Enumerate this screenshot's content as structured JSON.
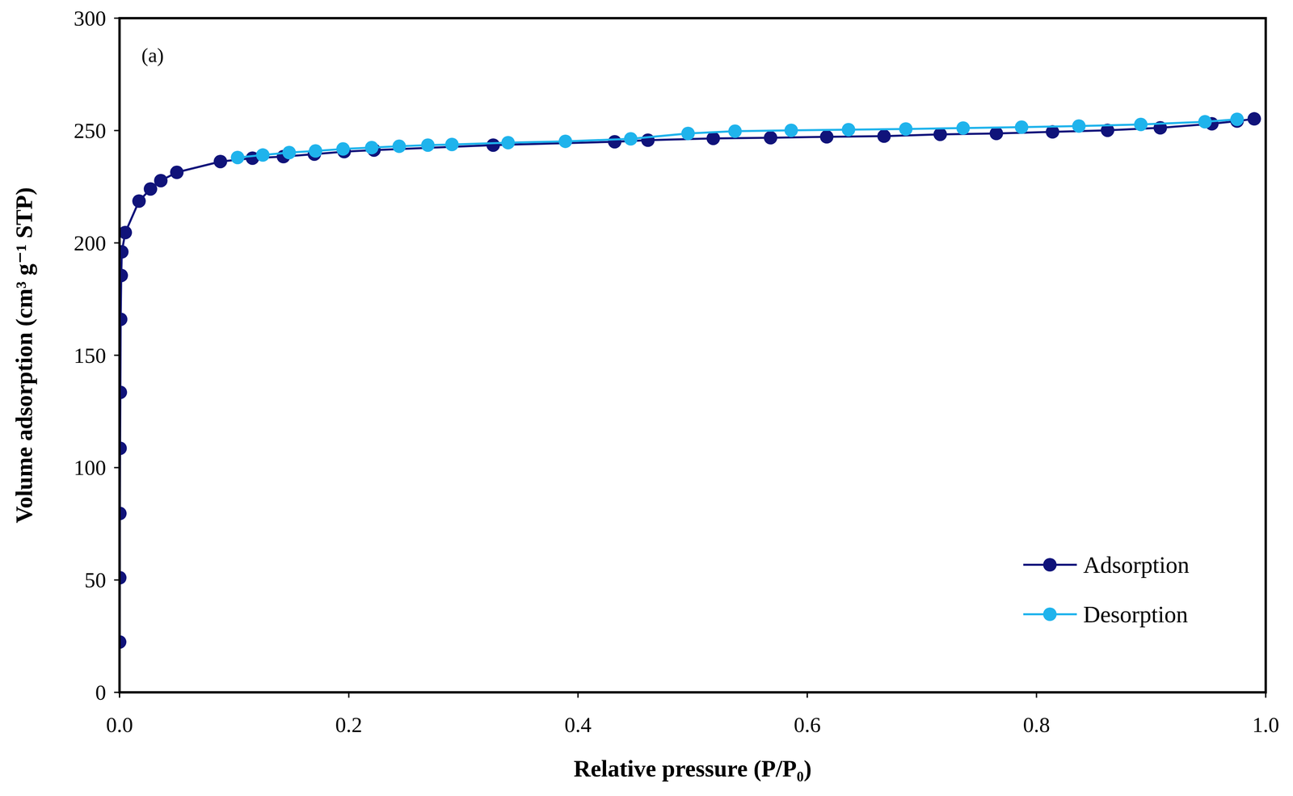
{
  "chart_data": {
    "type": "line",
    "annotation": "(a)",
    "x_label": "Relative pressure (P/P₀)",
    "y_label": "Volume adsorption (cm³ g⁻¹ STP)",
    "xlim": [
      0,
      1
    ],
    "ylim": [
      0,
      300
    ],
    "xticks": [
      {
        "value": 0,
        "label": "0.0"
      },
      0.2,
      0.4,
      0.6,
      0.8,
      {
        "value": 1,
        "label": "1.0"
      }
    ],
    "yticks": [
      0,
      50,
      100,
      150,
      200,
      250,
      300
    ],
    "grid": false,
    "legend": "lower right",
    "series": [
      {
        "name": "Adsorption",
        "color": "#10137a",
        "marker": "circle",
        "line_style": "solid",
        "x": [
          0.0001,
          0.0002,
          0.0003,
          0.0005,
          0.0007,
          0.001,
          0.0015,
          0.002,
          0.005,
          0.017,
          0.027,
          0.036,
          0.05,
          0.088,
          0.116,
          0.143,
          0.17,
          0.196,
          0.222,
          0.326,
          0.432,
          0.461,
          0.518,
          0.568,
          0.617,
          0.667,
          0.716,
          0.765,
          0.814,
          0.862,
          0.908,
          0.953,
          0.975,
          0.99
        ],
        "values": [
          22.4,
          51,
          79.6,
          108.6,
          133.5,
          166,
          185.5,
          196,
          204.6,
          218.6,
          224,
          227.7,
          231.4,
          236.2,
          237.7,
          238.4,
          239.5,
          240.6,
          241.3,
          243.5,
          245,
          245.7,
          246.5,
          246.8,
          247.2,
          247.5,
          248.3,
          248.7,
          249.4,
          250.1,
          251.2,
          253,
          254.2,
          255.2
        ]
      },
      {
        "name": "Desorption",
        "color": "#1fb3ec",
        "marker": "circle",
        "line_style": "solid",
        "x": [
          0.975,
          0.947,
          0.891,
          0.837,
          0.787,
          0.736,
          0.686,
          0.636,
          0.586,
          0.537,
          0.496,
          0.446,
          0.389,
          0.339,
          0.29,
          0.269,
          0.244,
          0.22,
          0.195,
          0.171,
          0.148,
          0.125,
          0.103
        ],
        "values": [
          255,
          253.9,
          252.7,
          252,
          251.5,
          251.1,
          250.7,
          250.4,
          250.1,
          249.7,
          248.7,
          246.3,
          245.2,
          244.6,
          243.8,
          243.5,
          243,
          242.4,
          241.8,
          240.9,
          240.2,
          239.1,
          238
        ]
      }
    ]
  }
}
